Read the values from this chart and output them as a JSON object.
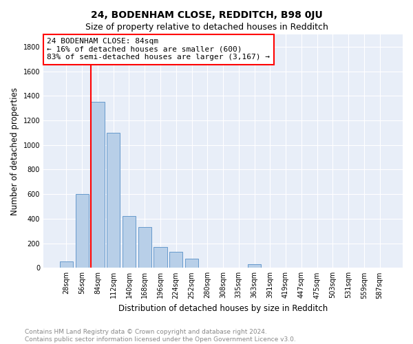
{
  "title": "24, BODENHAM CLOSE, REDDITCH, B98 0JU",
  "subtitle": "Size of property relative to detached houses in Redditch",
  "xlabel": "Distribution of detached houses by size in Redditch",
  "ylabel": "Number of detached properties",
  "bar_labels": [
    "28sqm",
    "56sqm",
    "84sqm",
    "112sqm",
    "140sqm",
    "168sqm",
    "196sqm",
    "224sqm",
    "252sqm",
    "280sqm",
    "308sqm",
    "335sqm",
    "363sqm",
    "391sqm",
    "419sqm",
    "447sqm",
    "475sqm",
    "503sqm",
    "531sqm",
    "559sqm",
    "587sqm"
  ],
  "bar_values": [
    50,
    600,
    1350,
    1100,
    420,
    330,
    170,
    130,
    75,
    0,
    0,
    0,
    30,
    0,
    0,
    0,
    0,
    0,
    0,
    0,
    0
  ],
  "bar_color": "#b8cfe8",
  "bar_edge_color": "#6699cc",
  "vline_index": 2,
  "vline_color": "red",
  "annotation_text_line1": "24 BODENHAM CLOSE: 84sqm",
  "annotation_text_line2": "← 16% of detached houses are smaller (600)",
  "annotation_text_line3": "83% of semi-detached houses are larger (3,167) →",
  "box_edge_color": "red",
  "ylim": [
    0,
    1900
  ],
  "yticks": [
    0,
    200,
    400,
    600,
    800,
    1000,
    1200,
    1400,
    1600,
    1800
  ],
  "background_color": "#e8eef8",
  "footnote_line1": "Contains HM Land Registry data © Crown copyright and database right 2024.",
  "footnote_line2": "Contains public sector information licensed under the Open Government Licence v3.0.",
  "title_fontsize": 10,
  "subtitle_fontsize": 9,
  "xlabel_fontsize": 8.5,
  "ylabel_fontsize": 8.5,
  "tick_fontsize": 7,
  "annotation_fontsize": 8,
  "footnote_fontsize": 6.5
}
